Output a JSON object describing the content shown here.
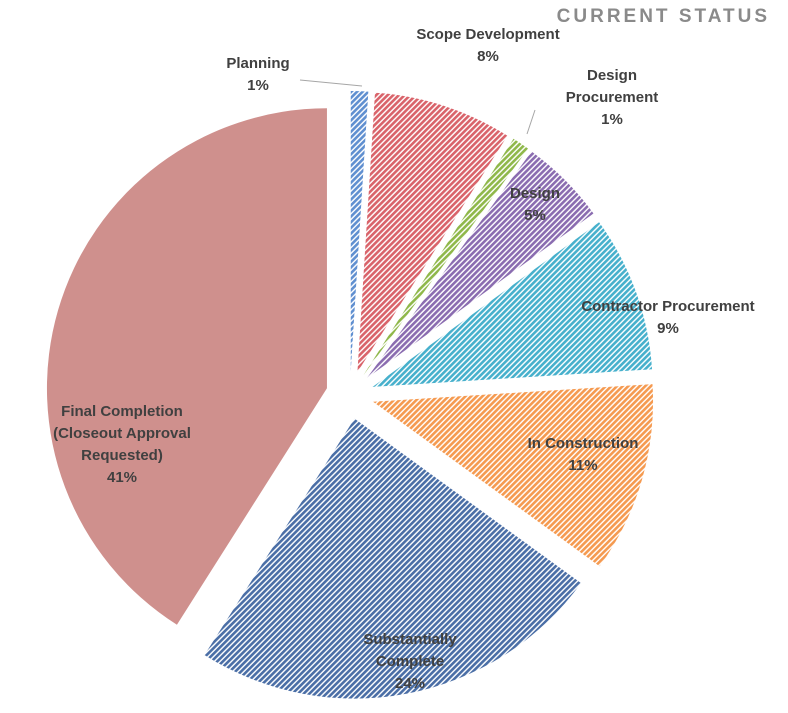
{
  "chart_data": {
    "type": "pie",
    "title": "CURRENT STATUS",
    "categories": [
      "Planning",
      "Scope Development",
      "Design Procurement",
      "Design",
      "Contractor Procurement",
      "In Construction",
      "Substantially Complete",
      "Final Completion (Closeout Approval Requested)"
    ],
    "values": [
      1,
      8,
      1,
      5,
      9,
      11,
      24,
      41
    ],
    "value_labels": [
      "1%",
      "8%",
      "1%",
      "5%",
      "9%",
      "11%",
      "24%",
      "41%"
    ],
    "colors": [
      "#5f8fd0",
      "#d9636a",
      "#8fb84a",
      "#8a6cb0",
      "#46b0cc",
      "#f59a50",
      "#4a6ea6",
      "#cf908d"
    ],
    "hatched": [
      true,
      true,
      true,
      true,
      true,
      true,
      true,
      false
    ]
  }
}
